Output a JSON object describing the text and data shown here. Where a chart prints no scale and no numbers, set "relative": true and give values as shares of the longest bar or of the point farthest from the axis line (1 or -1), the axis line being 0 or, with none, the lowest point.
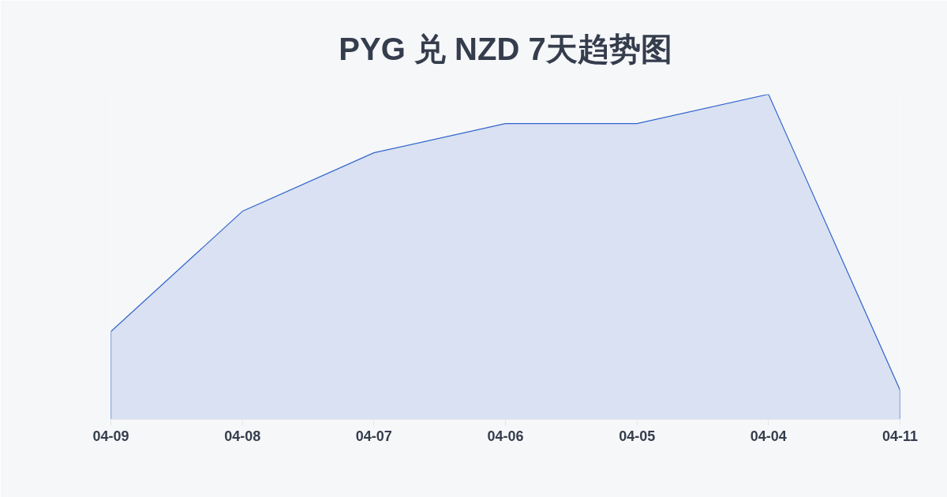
{
  "chart_data": {
    "type": "area",
    "title": "PYG 兑 NZD 7天趋势图",
    "relative": true,
    "categories": [
      "04-09",
      "04-08",
      "04-07",
      "04-06",
      "04-05",
      "04-04",
      "04-11"
    ],
    "values": [
      0.27,
      0.64,
      0.82,
      0.91,
      0.91,
      1,
      0.09
    ],
    "color": "#3366cc"
  }
}
